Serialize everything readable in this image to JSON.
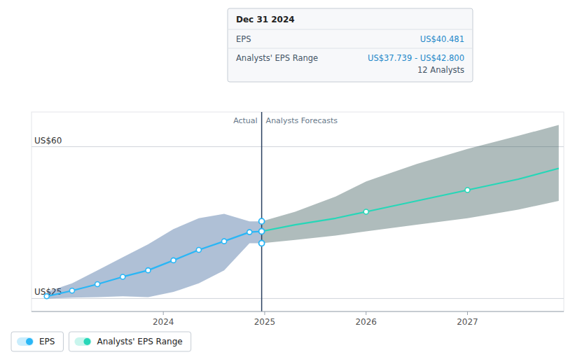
{
  "chart_data": {
    "type": "line",
    "xlim": [
      2022.7,
      2027.95
    ],
    "xticks": [
      2024,
      2025,
      2026,
      2027
    ],
    "ylim": [
      22,
      68
    ],
    "yticks": [
      {
        "value": 25,
        "label": "US$25"
      },
      {
        "value": 60,
        "label": "US$60"
      }
    ],
    "grid": true,
    "series": [
      {
        "name": "EPS",
        "type": "line",
        "color": "#29b6f6",
        "x": [
          2022.85,
          2023.1,
          2023.35,
          2023.6,
          2023.85,
          2024.1,
          2024.35,
          2024.6,
          2024.85,
          2024.97
        ],
        "values": [
          25.5,
          26.8,
          28.3,
          30.0,
          31.5,
          33.8,
          36.2,
          38.2,
          40.3,
          40.481
        ]
      },
      {
        "type": "area",
        "color": "#1a4a8a",
        "x": [
          2022.85,
          2023.1,
          2023.35,
          2023.6,
          2023.85,
          2024.1,
          2024.35,
          2024.6,
          2024.85,
          2024.97
        ],
        "upper": [
          26.5,
          28.5,
          31.5,
          34.5,
          37.5,
          41.0,
          43.5,
          44.5,
          42.8,
          42.8
        ],
        "lower": [
          25.0,
          25.2,
          25.3,
          25.5,
          25.3,
          26.5,
          28.5,
          31.5,
          37.739,
          37.739
        ]
      },
      {
        "name": "Analysts' EPS Range",
        "type": "line",
        "color": "#26d7b8",
        "x": [
          2024.97,
          2025.3,
          2025.7,
          2026.0,
          2026.5,
          2027.0,
          2027.5,
          2027.9
        ],
        "values": [
          40.481,
          42.0,
          43.5,
          45.0,
          47.5,
          50.0,
          52.5,
          55.0
        ]
      },
      {
        "type": "area",
        "color": "#1a4040",
        "x": [
          2024.97,
          2025.3,
          2025.7,
          2026.0,
          2026.5,
          2027.0,
          2027.5,
          2027.9
        ],
        "upper": [
          42.8,
          45.0,
          48.5,
          52.0,
          56.0,
          59.5,
          62.5,
          65.0
        ],
        "lower": [
          37.739,
          38.5,
          39.5,
          40.5,
          42.0,
          43.5,
          45.5,
          47.5
        ]
      },
      {
        "type": "scatter",
        "marker": "circle",
        "color": "#29b6f6",
        "x": [
          2022.85,
          2023.1,
          2023.35,
          2023.6,
          2023.85,
          2024.1,
          2024.35,
          2024.6,
          2024.85
        ],
        "values": [
          25.5,
          26.8,
          28.3,
          30.0,
          31.5,
          33.8,
          36.2,
          38.2,
          40.3
        ]
      },
      {
        "type": "scatter",
        "marker": "circle",
        "color": "#26d7b8",
        "x": [
          2026.0,
          2027.0
        ],
        "values": [
          45.0,
          50.0
        ]
      }
    ],
    "divider": {
      "x": 2024.97,
      "color": "#2a4060",
      "marker_color": "#29b6f6",
      "marker_values": [
        42.8,
        40.481,
        37.739
      ],
      "label_left": "Actual",
      "label_right": "Analysts Forecasts"
    },
    "tooltip": {
      "title": "Dec 31 2024",
      "rows": [
        {
          "label": "EPS",
          "value": "US$40.481"
        },
        {
          "label": "Analysts' EPS Range",
          "value": "US$37.739 - US$42.800",
          "note": "12 Analysts"
        }
      ]
    }
  }
}
